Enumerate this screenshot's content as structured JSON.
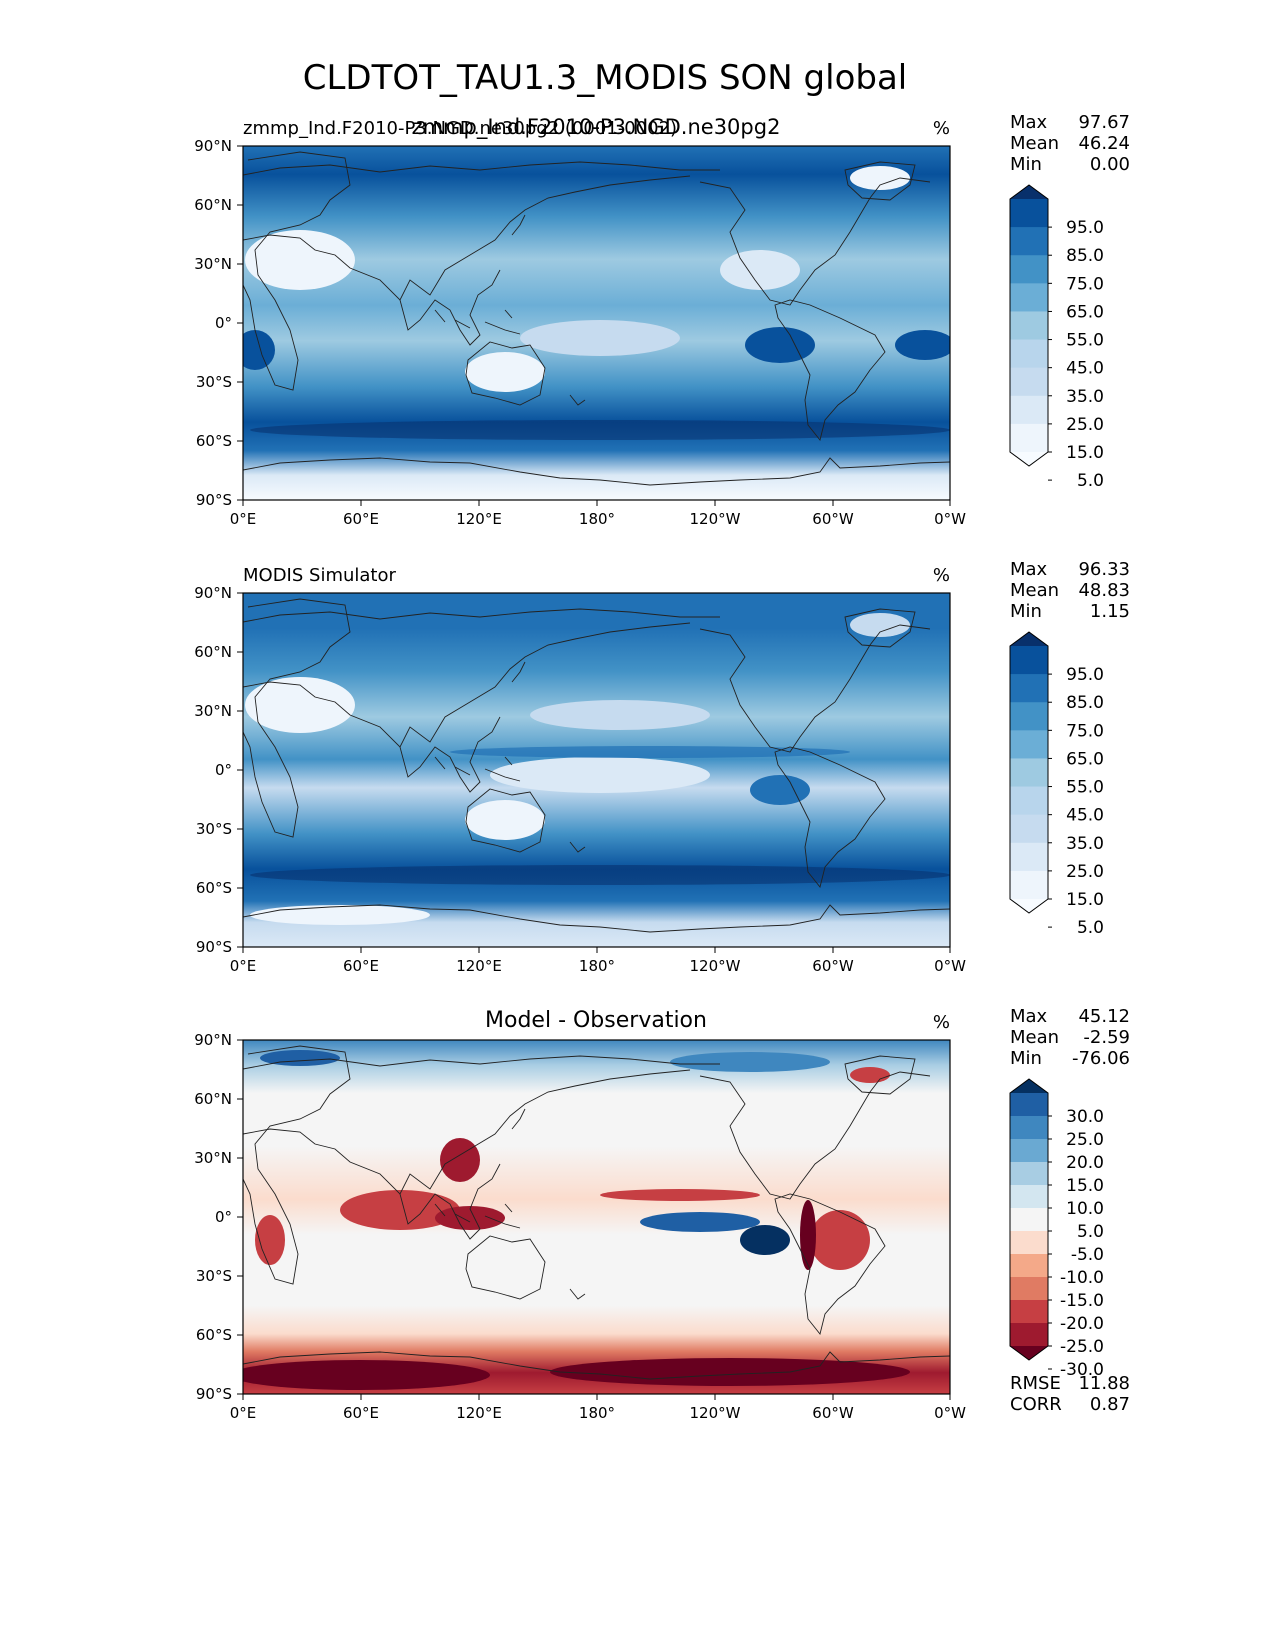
{
  "figure": {
    "title": "CLDTOT_TAU1.3_MODIS SON global"
  },
  "chart_data": [
    {
      "type": "heatmap",
      "panel": "test",
      "title_left": "zmmp_Ind.F2010-P3.NGD.ne30pg2",
      "title_left_overlap": "zmmp_Ind.F2010-P3.NGD.ne30pg2 (0001-0002)",
      "title_center": "zmmp_Ind.F2010-P3.NGD.ne30pg2",
      "units": "%",
      "lat_ticks": [
        "90°N",
        "60°N",
        "30°N",
        "0°",
        "30°S",
        "60°S",
        "90°S"
      ],
      "lon_ticks": [
        "0°E",
        "60°E",
        "120°E",
        "180°",
        "120°W",
        "60°W",
        "0°W"
      ],
      "stats": [
        {
          "label": "Max",
          "value": "97.67"
        },
        {
          "label": "Mean",
          "value": "46.24"
        },
        {
          "label": "Min",
          "value": "0.00"
        }
      ],
      "colorbar": {
        "cmap": "Blues",
        "labels": [
          "95.0",
          "85.0",
          "75.0",
          "65.0",
          "55.0",
          "45.0",
          "35.0",
          "25.0",
          "15.0",
          "5.0"
        ],
        "colors": [
          "#08306b",
          "#08519c",
          "#2171b5",
          "#4292c6",
          "#6baed6",
          "#9ecae1",
          "#b8d5ec",
          "#c6dbef",
          "#dbe9f6",
          "#eef5fc",
          "#f7fbff"
        ]
      }
    },
    {
      "type": "heatmap",
      "panel": "reference",
      "title_left": "MODIS Simulator",
      "units": "%",
      "lat_ticks": [
        "90°N",
        "60°N",
        "30°N",
        "0°",
        "30°S",
        "60°S",
        "90°S"
      ],
      "lon_ticks": [
        "0°E",
        "60°E",
        "120°E",
        "180°",
        "120°W",
        "60°W",
        "0°W"
      ],
      "stats": [
        {
          "label": "Max",
          "value": "96.33"
        },
        {
          "label": "Mean",
          "value": "48.83"
        },
        {
          "label": "Min",
          "value": "1.15"
        }
      ],
      "colorbar": {
        "cmap": "Blues",
        "labels": [
          "95.0",
          "85.0",
          "75.0",
          "65.0",
          "55.0",
          "45.0",
          "35.0",
          "25.0",
          "15.0",
          "5.0"
        ],
        "colors": [
          "#08306b",
          "#08519c",
          "#2171b5",
          "#4292c6",
          "#6baed6",
          "#9ecae1",
          "#b8d5ec",
          "#c6dbef",
          "#dbe9f6",
          "#eef5fc",
          "#f7fbff"
        ]
      }
    },
    {
      "type": "heatmap",
      "panel": "difference",
      "title_center": "Model - Observation",
      "units": "%",
      "lat_ticks": [
        "90°N",
        "60°N",
        "30°N",
        "0°",
        "30°S",
        "60°S",
        "90°S"
      ],
      "lon_ticks": [
        "0°E",
        "60°E",
        "120°E",
        "180°",
        "120°W",
        "60°W",
        "0°W"
      ],
      "stats": [
        {
          "label": "Max",
          "value": "45.12"
        },
        {
          "label": "Mean",
          "value": "-2.59"
        },
        {
          "label": "Min",
          "value": "-76.06"
        }
      ],
      "extra_stats": [
        {
          "label": "RMSE",
          "value": "11.88"
        },
        {
          "label": "CORR",
          "value": "0.87"
        }
      ],
      "colorbar": {
        "cmap": "RdBu_r",
        "labels": [
          "30.0",
          "25.0",
          "20.0",
          "15.0",
          "10.0",
          "5.0",
          "-5.0",
          "-10.0",
          "-15.0",
          "-20.0",
          "-25.0",
          "-30.0"
        ],
        "colors": [
          "#053061",
          "#1f5fa4",
          "#3f87bf",
          "#6aa9d2",
          "#a8cde3",
          "#d3e6f0",
          "#f5f5f5",
          "#fbdccd",
          "#f4a989",
          "#e07b63",
          "#c63f43",
          "#9e1a2f",
          "#67001f"
        ]
      }
    }
  ]
}
